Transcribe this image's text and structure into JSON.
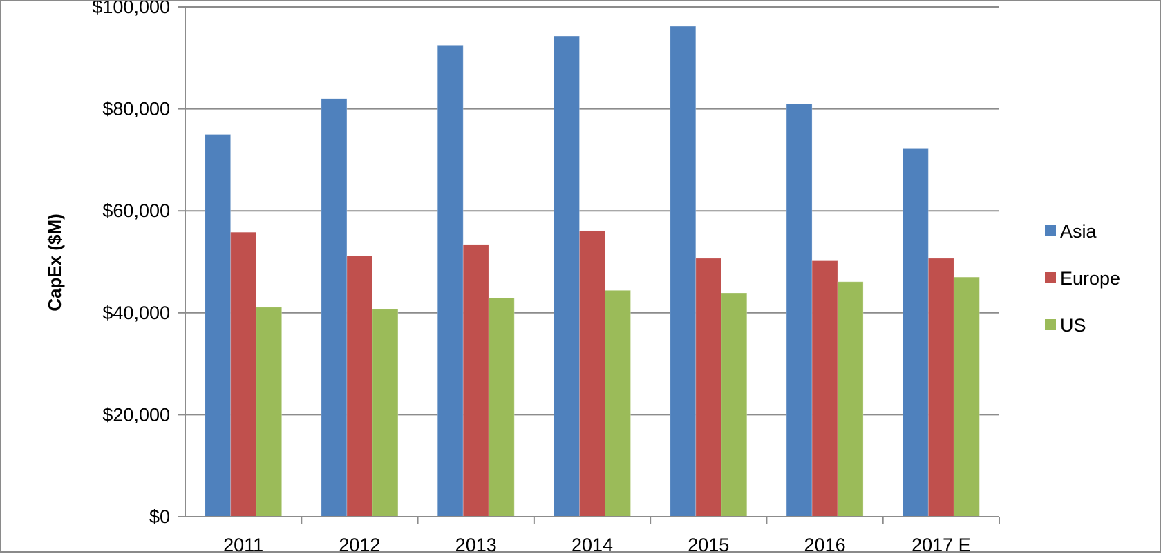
{
  "chart_data": {
    "type": "bar",
    "title": "",
    "xlabel": "",
    "ylabel": "CapEx ($M)",
    "categories": [
      "2011",
      "2012",
      "2013",
      "2014",
      "2015",
      "2016",
      "2017 E"
    ],
    "series": [
      {
        "name": "Asia",
        "color": "#4f81bd",
        "values": [
          75000,
          82000,
          92500,
          94300,
          96200,
          81000,
          72300
        ]
      },
      {
        "name": "Europe",
        "color": "#c0504d",
        "values": [
          55800,
          51200,
          53400,
          56100,
          50700,
          50200,
          50700
        ]
      },
      {
        "name": "US",
        "color": "#9bbb59",
        "values": [
          41100,
          40700,
          42900,
          44400,
          43900,
          46100,
          47000
        ]
      }
    ],
    "ylim": [
      0,
      100000
    ],
    "yticks": [
      0,
      20000,
      40000,
      60000,
      80000,
      100000
    ],
    "ytick_labels": [
      "$0",
      "$20,000",
      "$40,000",
      "$60,000",
      "$80,000",
      "$100,000"
    ],
    "grid": true,
    "legend_position": "right"
  }
}
